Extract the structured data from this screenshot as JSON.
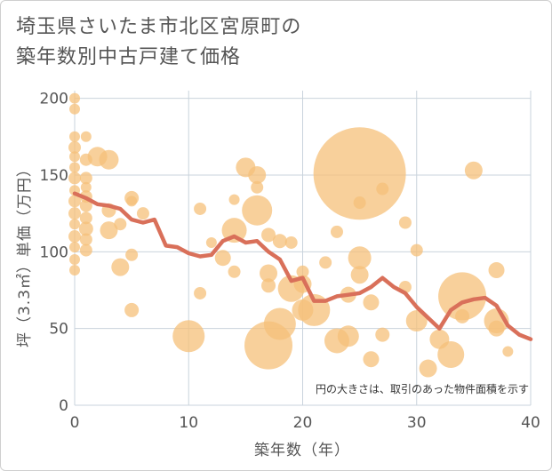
{
  "chart_data": {
    "type": "scatter",
    "title_lines": [
      "埼玉県さいたま市北区宮原町の",
      "築年数別中古戸建て価格"
    ],
    "xlabel": "築年数（年）",
    "ylabel": "坪（3.3㎡）単価（万円）",
    "note": "円の大きさは、取引のあった物件面積を示す",
    "xlim": [
      0,
      40
    ],
    "ylim": [
      0,
      205
    ],
    "xticks": [
      0,
      10,
      20,
      30,
      40
    ],
    "yticks": [
      0,
      50,
      100,
      150,
      200
    ],
    "grid": true,
    "colors": {
      "bubble": "#f5c07a",
      "line": "#d9705a",
      "grid": "#c9d3dc"
    },
    "series": [
      {
        "type": "bubble",
        "points": [
          {
            "x": 0,
            "y": 200,
            "r": 6
          },
          {
            "x": 0,
            "y": 193,
            "r": 6
          },
          {
            "x": 0,
            "y": 175,
            "r": 6
          },
          {
            "x": 0,
            "y": 168,
            "r": 7
          },
          {
            "x": 0,
            "y": 162,
            "r": 6
          },
          {
            "x": 0,
            "y": 155,
            "r": 6
          },
          {
            "x": 0,
            "y": 148,
            "r": 7
          },
          {
            "x": 0,
            "y": 140,
            "r": 6
          },
          {
            "x": 0,
            "y": 133,
            "r": 7
          },
          {
            "x": 0,
            "y": 125,
            "r": 7
          },
          {
            "x": 0,
            "y": 118,
            "r": 6
          },
          {
            "x": 0,
            "y": 110,
            "r": 7
          },
          {
            "x": 0,
            "y": 103,
            "r": 6
          },
          {
            "x": 0,
            "y": 95,
            "r": 6
          },
          {
            "x": 0,
            "y": 88,
            "r": 6
          },
          {
            "x": 1,
            "y": 175,
            "r": 6
          },
          {
            "x": 1,
            "y": 160,
            "r": 7
          },
          {
            "x": 1,
            "y": 148,
            "r": 7
          },
          {
            "x": 1,
            "y": 142,
            "r": 6
          },
          {
            "x": 1,
            "y": 136,
            "r": 7
          },
          {
            "x": 1,
            "y": 130,
            "r": 7
          },
          {
            "x": 1,
            "y": 122,
            "r": 7
          },
          {
            "x": 1,
            "y": 115,
            "r": 8
          },
          {
            "x": 1,
            "y": 108,
            "r": 7
          },
          {
            "x": 1,
            "y": 101,
            "r": 7
          },
          {
            "x": 2,
            "y": 162,
            "r": 11
          },
          {
            "x": 3,
            "y": 160,
            "r": 11
          },
          {
            "x": 3,
            "y": 127,
            "r": 8
          },
          {
            "x": 3,
            "y": 114,
            "r": 10
          },
          {
            "x": 4,
            "y": 118,
            "r": 7
          },
          {
            "x": 4,
            "y": 90,
            "r": 10
          },
          {
            "x": 5,
            "y": 135,
            "r": 8
          },
          {
            "x": 5,
            "y": 133,
            "r": 6
          },
          {
            "x": 5,
            "y": 98,
            "r": 7
          },
          {
            "x": 5,
            "y": 62,
            "r": 8
          },
          {
            "x": 6,
            "y": 125,
            "r": 7
          },
          {
            "x": 10,
            "y": 45,
            "r": 18
          },
          {
            "x": 11,
            "y": 128,
            "r": 7
          },
          {
            "x": 11,
            "y": 73,
            "r": 7
          },
          {
            "x": 12,
            "y": 106,
            "r": 6
          },
          {
            "x": 13,
            "y": 96,
            "r": 9
          },
          {
            "x": 14,
            "y": 134,
            "r": 6
          },
          {
            "x": 14,
            "y": 114,
            "r": 14
          },
          {
            "x": 14,
            "y": 87,
            "r": 7
          },
          {
            "x": 15,
            "y": 155,
            "r": 11
          },
          {
            "x": 16,
            "y": 150,
            "r": 10
          },
          {
            "x": 16,
            "y": 142,
            "r": 7
          },
          {
            "x": 16,
            "y": 127,
            "r": 17
          },
          {
            "x": 17,
            "y": 111,
            "r": 8
          },
          {
            "x": 17,
            "y": 86,
            "r": 10
          },
          {
            "x": 17,
            "y": 78,
            "r": 8
          },
          {
            "x": 17,
            "y": 39,
            "r": 27
          },
          {
            "x": 18,
            "y": 107,
            "r": 8
          },
          {
            "x": 18,
            "y": 53,
            "r": 18
          },
          {
            "x": 19,
            "y": 106,
            "r": 7
          },
          {
            "x": 19,
            "y": 76,
            "r": 15
          },
          {
            "x": 20,
            "y": 87,
            "r": 7
          },
          {
            "x": 20,
            "y": 79,
            "r": 10
          },
          {
            "x": 20,
            "y": 62,
            "r": 12
          },
          {
            "x": 21,
            "y": 62,
            "r": 18
          },
          {
            "x": 22,
            "y": 93,
            "r": 7
          },
          {
            "x": 23,
            "y": 113,
            "r": 7
          },
          {
            "x": 23,
            "y": 42,
            "r": 14
          },
          {
            "x": 24,
            "y": 72,
            "r": 9
          },
          {
            "x": 24,
            "y": 45,
            "r": 12
          },
          {
            "x": 25,
            "y": 151,
            "r": 52
          },
          {
            "x": 25,
            "y": 132,
            "r": 7
          },
          {
            "x": 25,
            "y": 96,
            "r": 13
          },
          {
            "x": 25,
            "y": 85,
            "r": 10
          },
          {
            "x": 26,
            "y": 30,
            "r": 9
          },
          {
            "x": 26,
            "y": 67,
            "r": 9
          },
          {
            "x": 27,
            "y": 141,
            "r": 7
          },
          {
            "x": 27,
            "y": 46,
            "r": 8
          },
          {
            "x": 29,
            "y": 119,
            "r": 7
          },
          {
            "x": 29,
            "y": 77,
            "r": 7
          },
          {
            "x": 30,
            "y": 101,
            "r": 7
          },
          {
            "x": 30,
            "y": 55,
            "r": 12
          },
          {
            "x": 31,
            "y": 24,
            "r": 10
          },
          {
            "x": 32,
            "y": 43,
            "r": 11
          },
          {
            "x": 33,
            "y": 33,
            "r": 15
          },
          {
            "x": 34,
            "y": 71,
            "r": 27
          },
          {
            "x": 34,
            "y": 58,
            "r": 8
          },
          {
            "x": 35,
            "y": 153,
            "r": 10
          },
          {
            "x": 37,
            "y": 88,
            "r": 9
          },
          {
            "x": 37,
            "y": 50,
            "r": 9
          },
          {
            "x": 37,
            "y": 55,
            "r": 14
          },
          {
            "x": 38,
            "y": 35,
            "r": 6
          }
        ]
      },
      {
        "type": "line",
        "points": [
          {
            "x": 0,
            "y": 138
          },
          {
            "x": 1,
            "y": 135
          },
          {
            "x": 2,
            "y": 131
          },
          {
            "x": 3,
            "y": 130
          },
          {
            "x": 4,
            "y": 128
          },
          {
            "x": 5,
            "y": 121
          },
          {
            "x": 6,
            "y": 119
          },
          {
            "x": 7,
            "y": 121
          },
          {
            "x": 8,
            "y": 104
          },
          {
            "x": 9,
            "y": 103
          },
          {
            "x": 10,
            "y": 99
          },
          {
            "x": 11,
            "y": 97
          },
          {
            "x": 12,
            "y": 98
          },
          {
            "x": 13,
            "y": 107
          },
          {
            "x": 14,
            "y": 110
          },
          {
            "x": 15,
            "y": 106
          },
          {
            "x": 16,
            "y": 107
          },
          {
            "x": 17,
            "y": 100
          },
          {
            "x": 18,
            "y": 95
          },
          {
            "x": 19,
            "y": 81
          },
          {
            "x": 20,
            "y": 83
          },
          {
            "x": 21,
            "y": 68
          },
          {
            "x": 22,
            "y": 68
          },
          {
            "x": 23,
            "y": 71
          },
          {
            "x": 24,
            "y": 72
          },
          {
            "x": 25,
            "y": 73
          },
          {
            "x": 26,
            "y": 77
          },
          {
            "x": 27,
            "y": 83
          },
          {
            "x": 28,
            "y": 77
          },
          {
            "x": 29,
            "y": 73
          },
          {
            "x": 30,
            "y": 64
          },
          {
            "x": 31,
            "y": 57
          },
          {
            "x": 32,
            "y": 50
          },
          {
            "x": 33,
            "y": 62
          },
          {
            "x": 34,
            "y": 67
          },
          {
            "x": 35,
            "y": 69
          },
          {
            "x": 36,
            "y": 70
          },
          {
            "x": 37,
            "y": 65
          },
          {
            "x": 38,
            "y": 52
          },
          {
            "x": 39,
            "y": 46
          },
          {
            "x": 40,
            "y": 43
          }
        ]
      }
    ]
  }
}
